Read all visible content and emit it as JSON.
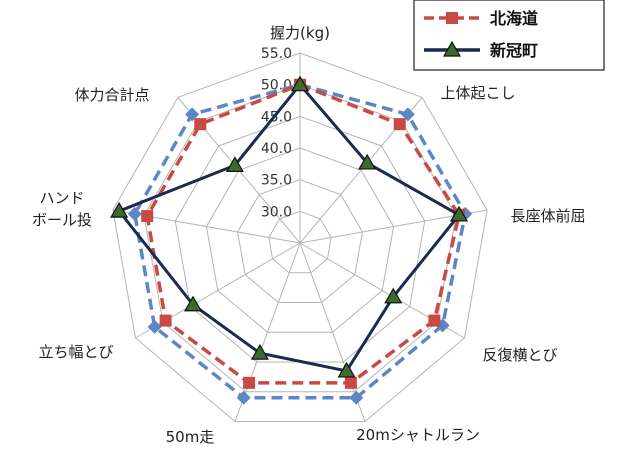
{
  "chart_data": {
    "type": "radar",
    "axes": [
      {
        "label": [
          "握力(kg)"
        ]
      },
      {
        "label": [
          "上体起こし"
        ]
      },
      {
        "label": [
          "長座体前屈"
        ]
      },
      {
        "label": [
          "反復横とび"
        ]
      },
      {
        "label": [
          "20mシャトルラン"
        ]
      },
      {
        "label": [
          "50m走"
        ]
      },
      {
        "label": [
          "立ち幅とび"
        ]
      },
      {
        "label": [
          "ハンド",
          "ボール投"
        ]
      },
      {
        "label": [
          "体力合計点"
        ]
      }
    ],
    "rlim": [
      25,
      55
    ],
    "ticks": [
      "30.0",
      "35.0",
      "40.0",
      "45.0",
      "50.0",
      "55.0"
    ],
    "tick_values": [
      30,
      35,
      40,
      45,
      50,
      55
    ],
    "grid": true,
    "legend_position": "top-right",
    "series": [
      {
        "name": "",
        "color": "#5b87c7",
        "dash": "dashed",
        "marker": "diamond",
        "values": [
          50,
          51.5,
          51.5,
          51,
          51,
          51,
          51.5,
          51.5,
          51.5
        ]
      },
      {
        "name": "北海道",
        "color": "#c94a45",
        "dash": "dashed",
        "marker": "square",
        "values": [
          50,
          49.5,
          50.5,
          49.5,
          48.5,
          48.5,
          49.5,
          49.5,
          49.5
        ]
      },
      {
        "name": "新冠町",
        "color": "#1c2a4f",
        "dash": "solid",
        "marker": "triangle",
        "values": [
          50,
          41.5,
          50.5,
          42,
          46.5,
          43.5,
          44.5,
          54,
          41
        ]
      }
    ]
  }
}
